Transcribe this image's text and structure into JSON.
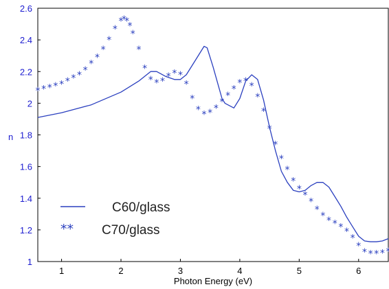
{
  "chart_data": {
    "type": "line",
    "xlabel": "Photon Energy (eV)",
    "ylabel": "n",
    "xlim": [
      0.6,
      6.5
    ],
    "ylim": [
      1.0,
      2.6
    ],
    "x_ticks": [
      1,
      2,
      3,
      4,
      5,
      6
    ],
    "y_ticks": [
      1,
      1.2,
      1.4,
      1.6,
      1.8,
      2,
      2.2,
      2.4,
      2.6
    ],
    "grid": false,
    "legend_position": "lower-left",
    "series": [
      {
        "name": "C60/glass",
        "style": "solid-line",
        "color": "#2a3fbf",
        "x": [
          0.6,
          1.0,
          1.5,
          2.0,
          2.3,
          2.5,
          2.6,
          2.75,
          2.9,
          3.0,
          3.1,
          3.25,
          3.4,
          3.45,
          3.55,
          3.7,
          3.75,
          3.9,
          4.0,
          4.1,
          4.2,
          4.3,
          4.4,
          4.5,
          4.6,
          4.7,
          4.8,
          4.9,
          5.0,
          5.1,
          5.2,
          5.3,
          5.4,
          5.5,
          5.6,
          5.7,
          5.8,
          5.9,
          6.0,
          6.1,
          6.2,
          6.3,
          6.4,
          6.5
        ],
        "y": [
          1.91,
          1.94,
          1.99,
          2.07,
          2.14,
          2.2,
          2.2,
          2.17,
          2.15,
          2.15,
          2.18,
          2.27,
          2.36,
          2.35,
          2.23,
          2.03,
          2.0,
          1.97,
          2.03,
          2.14,
          2.18,
          2.15,
          2.02,
          1.85,
          1.7,
          1.57,
          1.5,
          1.45,
          1.44,
          1.45,
          1.48,
          1.5,
          1.5,
          1.47,
          1.41,
          1.35,
          1.28,
          1.22,
          1.16,
          1.13,
          1.125,
          1.125,
          1.13,
          1.145
        ]
      },
      {
        "name": "C70/glass",
        "style": "asterisk-markers",
        "color": "#2a3fbf",
        "x": [
          0.6,
          0.7,
          0.8,
          0.9,
          1.0,
          1.1,
          1.2,
          1.3,
          1.4,
          1.5,
          1.6,
          1.7,
          1.8,
          1.9,
          2.0,
          2.05,
          2.1,
          2.15,
          2.2,
          2.3,
          2.4,
          2.5,
          2.6,
          2.7,
          2.8,
          2.9,
          3.0,
          3.1,
          3.2,
          3.3,
          3.4,
          3.5,
          3.6,
          3.7,
          3.8,
          3.9,
          4.0,
          4.1,
          4.2,
          4.3,
          4.4,
          4.5,
          4.6,
          4.7,
          4.8,
          4.9,
          5.0,
          5.1,
          5.2,
          5.3,
          5.4,
          5.5,
          5.6,
          5.7,
          5.8,
          5.9,
          6.0,
          6.1,
          6.2,
          6.3,
          6.4,
          6.5
        ],
        "y": [
          2.08,
          2.09,
          2.1,
          2.11,
          2.12,
          2.14,
          2.16,
          2.18,
          2.21,
          2.25,
          2.29,
          2.34,
          2.4,
          2.47,
          2.52,
          2.53,
          2.52,
          2.49,
          2.44,
          2.34,
          2.22,
          2.15,
          2.13,
          2.14,
          2.17,
          2.19,
          2.18,
          2.12,
          2.03,
          1.96,
          1.93,
          1.94,
          1.97,
          2.01,
          2.05,
          2.09,
          2.13,
          2.14,
          2.11,
          2.04,
          1.95,
          1.84,
          1.74,
          1.65,
          1.58,
          1.51,
          1.46,
          1.42,
          1.38,
          1.33,
          1.29,
          1.26,
          1.24,
          1.22,
          1.19,
          1.15,
          1.1,
          1.06,
          1.05,
          1.05,
          1.055,
          1.065
        ]
      }
    ]
  }
}
